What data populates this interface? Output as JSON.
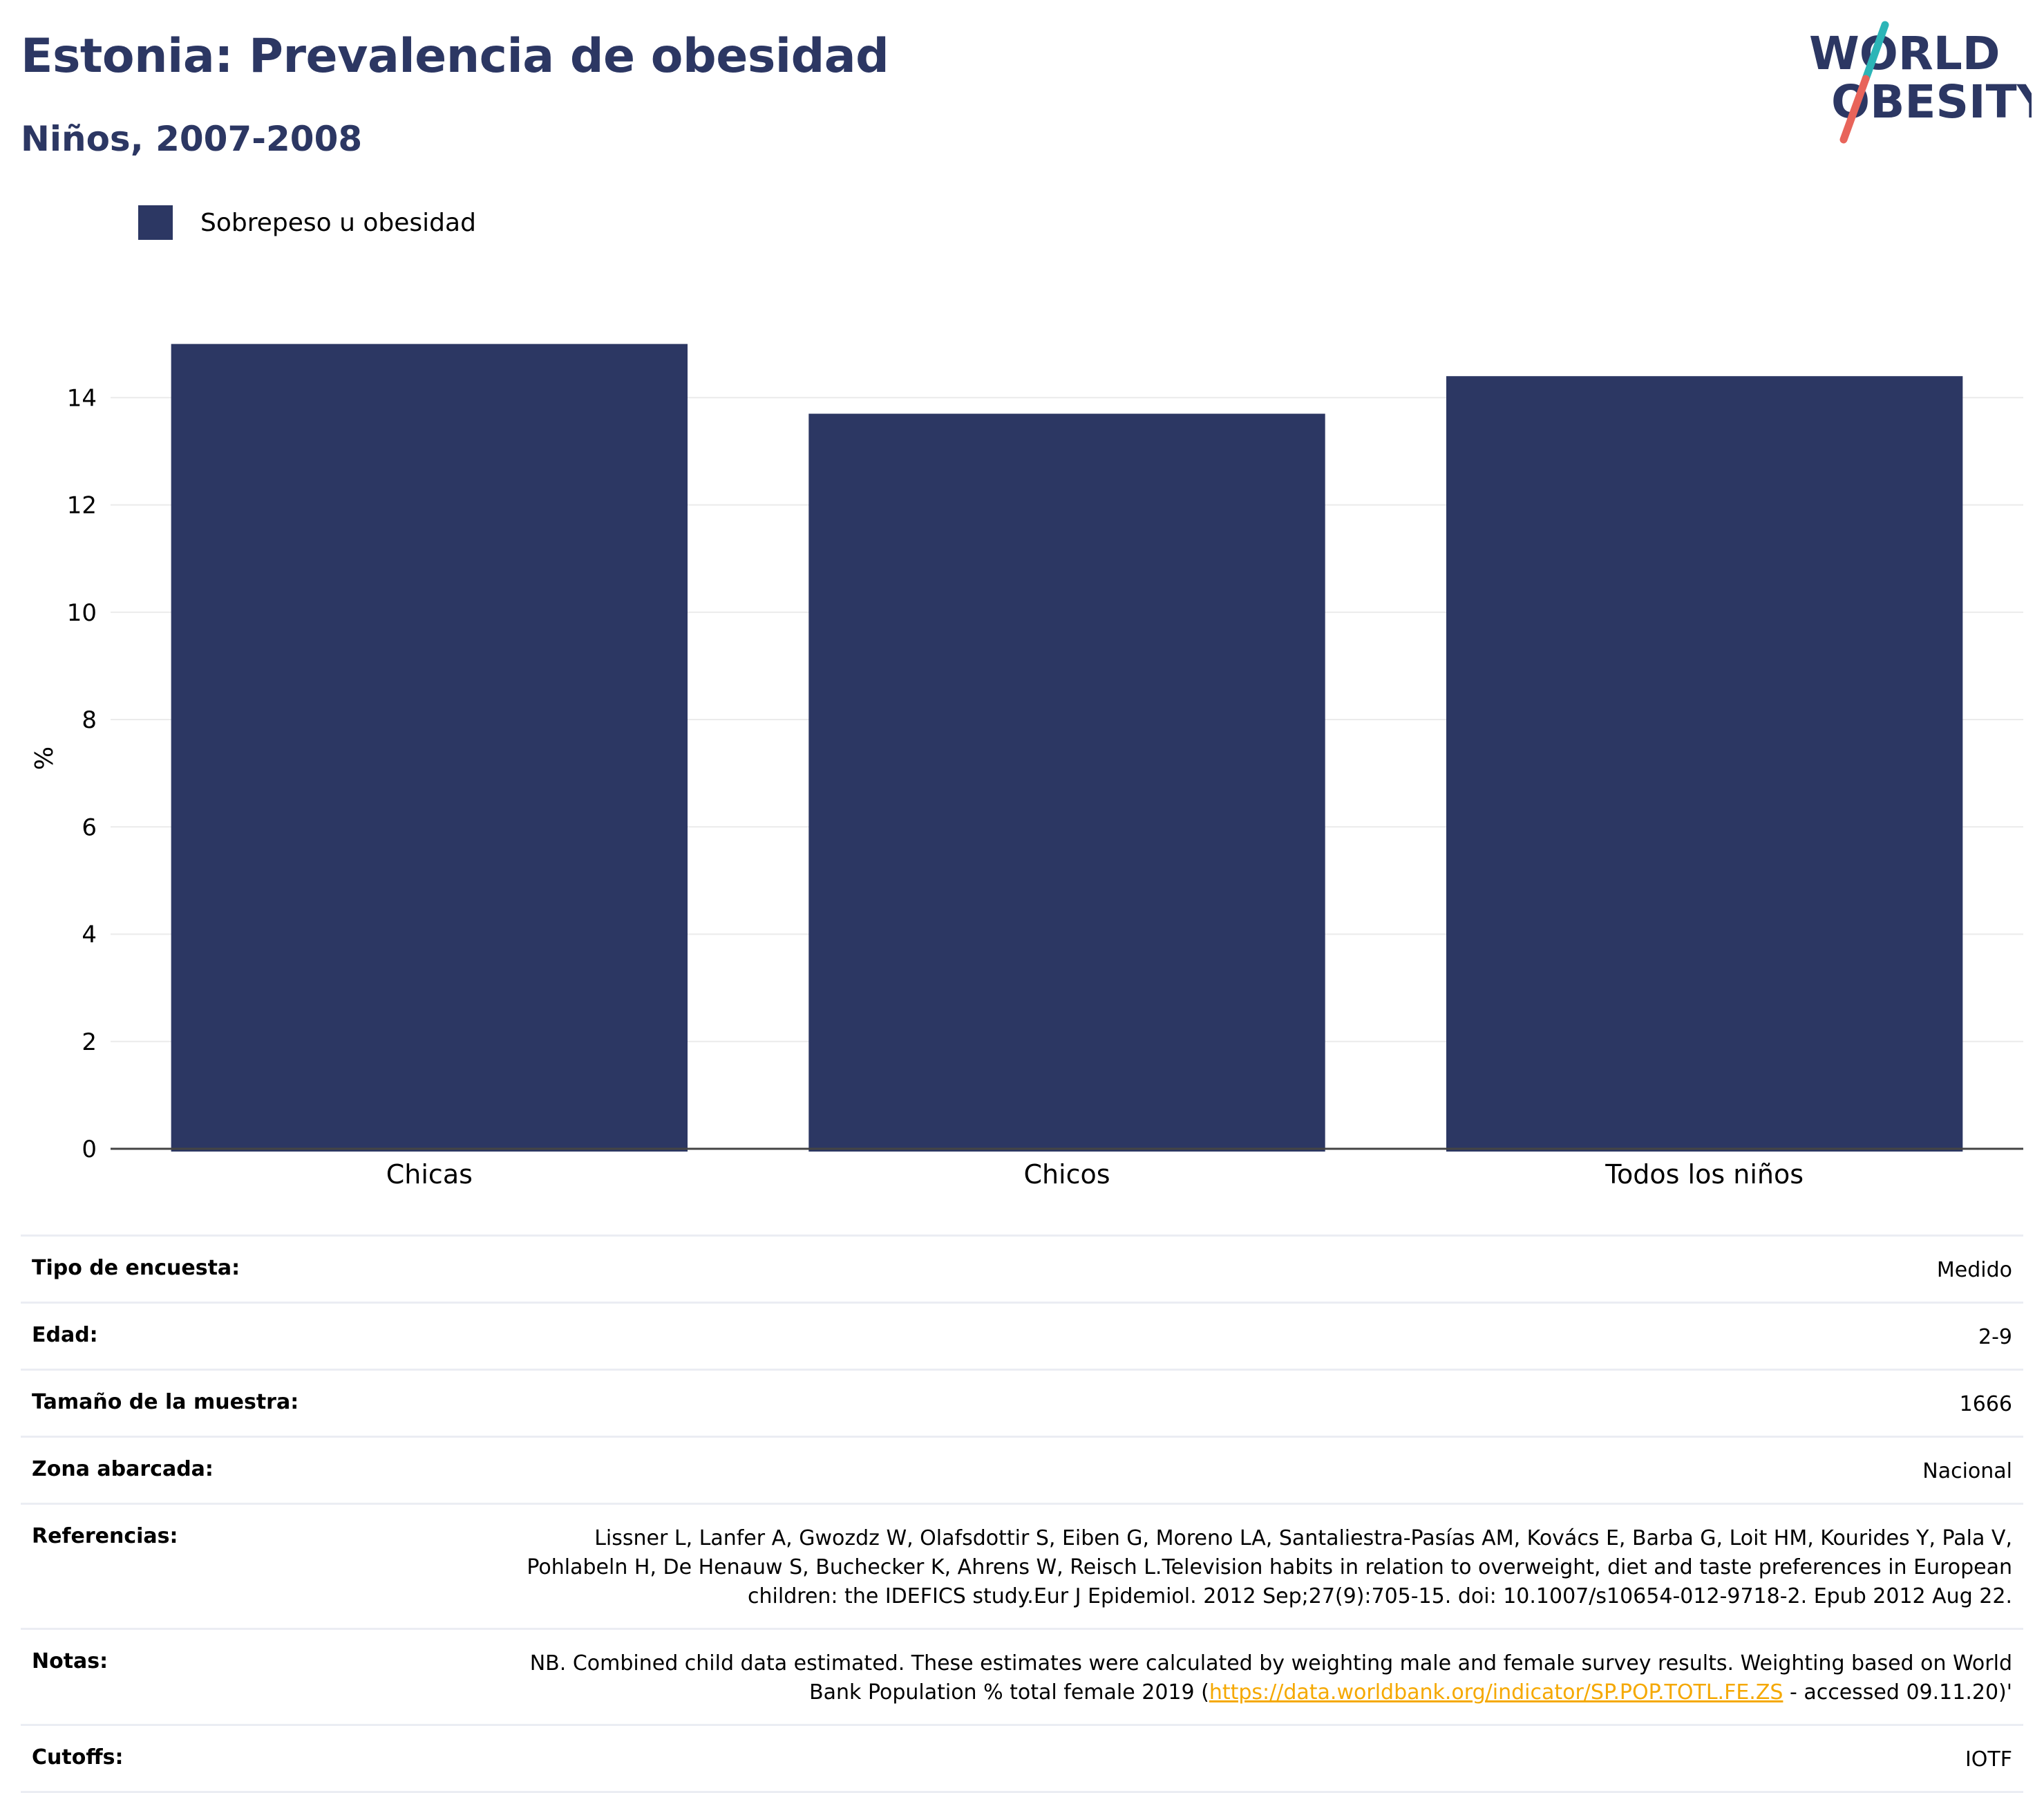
{
  "header": {
    "title": "Estonia: Prevalencia de obesidad",
    "subtitle": "Niños, 2007-2008"
  },
  "logo": {
    "line1": "WORLD",
    "line2": "OBESITY"
  },
  "colors": {
    "bar": "#2c3763",
    "title": "#2c3763",
    "link": "#f5a800",
    "logo_teal": "#2cb5b7",
    "logo_coral": "#e8645a"
  },
  "chart_data": {
    "type": "bar",
    "categories": [
      "Chicas",
      "Chicos",
      "Todos los niños"
    ],
    "series": [
      {
        "name": "Sobrepeso u obesidad",
        "values": [
          15.0,
          13.7,
          14.4
        ]
      }
    ],
    "ylabel": "%",
    "xlabel": "",
    "ylim": [
      0,
      16
    ],
    "yticks": [
      0,
      2,
      4,
      6,
      8,
      10,
      12,
      14
    ],
    "grid": true,
    "legend": "top-left"
  },
  "meta": [
    {
      "label": "Tipo de encuesta:",
      "value": "Medido"
    },
    {
      "label": "Edad:",
      "value": "2-9"
    },
    {
      "label": "Tamaño de la muestra:",
      "value": "1666"
    },
    {
      "label": "Zona abarcada:",
      "value": "Nacional"
    },
    {
      "label": "Referencias:",
      "value": "Lissner L, Lanfer A, Gwozdz W, Olafsdottir S, Eiben G, Moreno LA, Santaliestra-Pasías AM, Kovács E, Barba G, Loit HM, Kourides Y, Pala V, Pohlabeln H, De Henauw S, Buchecker K, Ahrens W, Reisch L.Television habits in relation to overweight, diet and taste preferences in European children: the IDEFICS study.Eur J Epidemiol. 2012 Sep;27(9):705-15. doi: 10.1007/s10654-012-9718-2. Epub 2012 Aug 22."
    },
    {
      "label": "Notas:",
      "value_before": "NB. Combined child data estimated. These estimates were calculated by weighting male and female survey results. Weighting based on World Bank Population % total female 2019 (",
      "link": "https://data.worldbank.org/indicator/SP.POP.TOTL.FE.ZS",
      "value_after": " - accessed 09.11.20)'"
    },
    {
      "label": "Cutoffs:",
      "value": "IOTF"
    }
  ]
}
